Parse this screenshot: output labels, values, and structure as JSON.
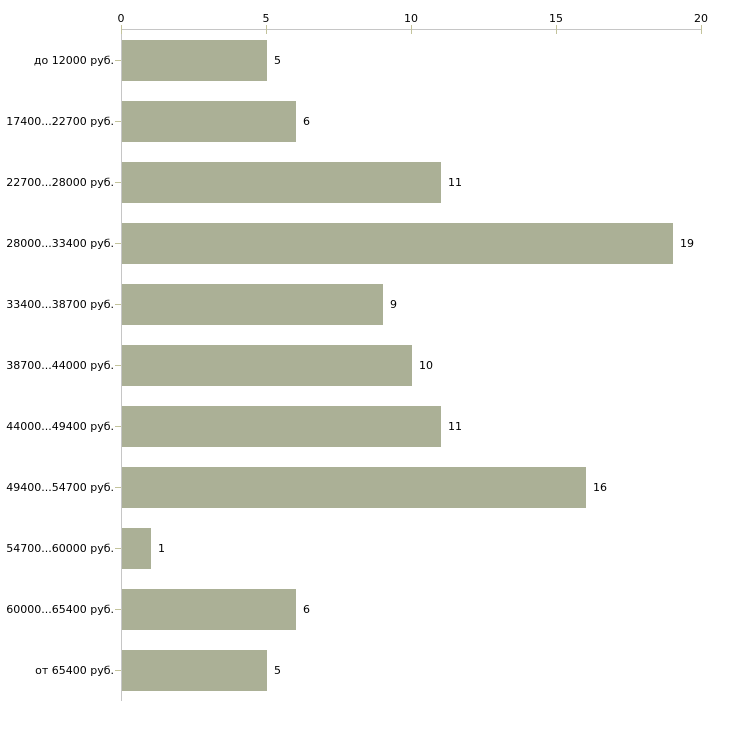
{
  "chart_data": {
    "type": "bar",
    "orientation": "horizontal",
    "title": "",
    "xlabel": "",
    "ylabel": "",
    "categories": [
      "до 12000 руб.",
      "17400...22700 руб.",
      "22700...28000 руб.",
      "28000...33400 руб.",
      "33400...38700 руб.",
      "38700...44000 руб.",
      "44000...49400 руб.",
      "49400...54700 руб.",
      "54700...60000 руб.",
      "60000...65400 руб.",
      "от 65400 руб."
    ],
    "values": [
      5,
      6,
      11,
      19,
      9,
      10,
      11,
      16,
      1,
      6,
      5
    ],
    "xlim": [
      0,
      20
    ],
    "x_ticks": [
      0,
      5,
      10,
      15,
      20
    ],
    "x_axis_position": "top",
    "grid": false,
    "legend": false,
    "colors": {
      "bar_fill": "#abb096",
      "axis_line": "#c6c6c6",
      "tick_mark": "#c3c39b",
      "text": "#000000",
      "background": "#ffffff"
    }
  }
}
